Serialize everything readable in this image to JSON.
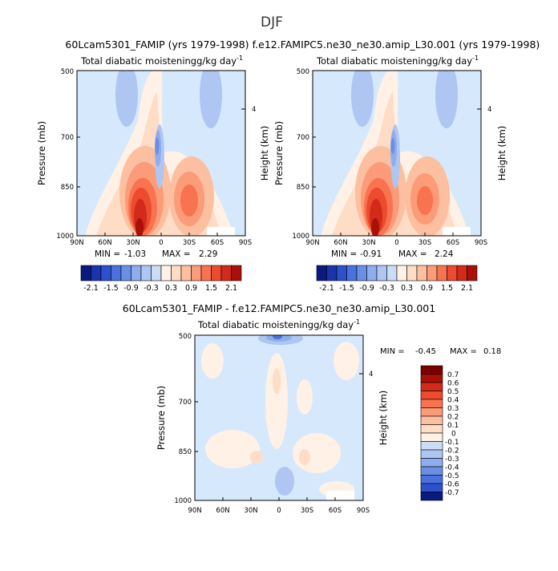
{
  "figure_title": "DJF",
  "colors": {
    "positive": [
      "#fff1e6",
      "#fedcc6",
      "#fcbfa0",
      "#fb9b77",
      "#f97350",
      "#ec4b2f",
      "#d32a1a",
      "#a81008",
      "#7a0000"
    ],
    "negative": [
      "#e0ecfb",
      "#cbdcf6",
      "#aec6f1",
      "#8dadec",
      "#6a90e6",
      "#4b71de",
      "#2e50cf",
      "#1b34ab",
      "#0a1a80"
    ],
    "background": "#d6e8fc"
  },
  "chart_data": [
    {
      "type": "heatmap",
      "name": "60Lcam5301_FAMIP (yrs 1979-1998)",
      "title": "Total diabatic moistening",
      "units": "g/kg day",
      "units_exponent": "-1",
      "x_ticks": [
        "90N",
        "60N",
        "30N",
        "0",
        "30S",
        "60S",
        "90S"
      ],
      "y_ticks": [
        "500",
        "700",
        "850",
        "1000"
      ],
      "ylabel": "Pressure  (mb)",
      "right_label": "Height  (km)",
      "right_tick": "4",
      "min_label": "MIN =",
      "min_value": "-1.03",
      "max_label": "MAX =",
      "max_value": "2.29",
      "colorbar_labels": [
        "-2.1",
        "-1.5",
        "-0.9",
        "-0.3",
        "0.3",
        "0.9",
        "1.5",
        "2.1"
      ],
      "colorbar_levels": [
        -2.1,
        -1.8,
        -1.5,
        -1.2,
        -0.9,
        -0.6,
        -0.3,
        0,
        0.3,
        0.6,
        0.9,
        1.2,
        1.5,
        1.8,
        2.1
      ],
      "features": [
        {
          "lat": -22,
          "p": 930,
          "value": 2.2
        },
        {
          "lat": 25,
          "p": 900,
          "value": 1.1
        },
        {
          "lat": -5,
          "p": 700,
          "value": -0.8
        },
        {
          "lat": 60,
          "p": 620,
          "value": -0.5
        },
        {
          "lat": -60,
          "p": 620,
          "value": -0.5
        }
      ]
    },
    {
      "type": "heatmap",
      "name": "f.e12.FAMIPC5.ne30_ne30.amip_L30.001 (yrs 1979-1998)",
      "title": "Total diabatic moistening",
      "units": "g/kg day",
      "units_exponent": "-1",
      "x_ticks": [
        "90N",
        "60N",
        "30N",
        "0",
        "30S",
        "60S",
        "90S"
      ],
      "y_ticks": [
        "500",
        "700",
        "850",
        "1000"
      ],
      "ylabel": "Pressure  (mb)",
      "right_label": "Height  (km)",
      "right_tick": "4",
      "min_label": "MIN =",
      "min_value": "-0.91",
      "max_label": "MAX =",
      "max_value": "2.24",
      "colorbar_labels": [
        "-2.1",
        "-1.5",
        "-0.9",
        "-0.3",
        "0.3",
        "0.9",
        "1.5",
        "2.1"
      ],
      "colorbar_levels": [
        -2.1,
        -1.8,
        -1.5,
        -1.2,
        -0.9,
        -0.6,
        -0.3,
        0,
        0.3,
        0.6,
        0.9,
        1.2,
        1.5,
        1.8,
        2.1
      ],
      "features": [
        {
          "lat": -22,
          "p": 930,
          "value": 2.1
        },
        {
          "lat": 25,
          "p": 900,
          "value": 1.0
        },
        {
          "lat": -5,
          "p": 700,
          "value": -0.75
        },
        {
          "lat": 60,
          "p": 620,
          "value": -0.5
        },
        {
          "lat": -60,
          "p": 620,
          "value": -0.5
        }
      ]
    },
    {
      "type": "heatmap",
      "name": "60Lcam5301_FAMIP - f.e12.FAMIPC5.ne30_ne30.amip_L30.001",
      "title": "Total diabatic moistening",
      "units": "g/kg day",
      "units_exponent": "-1",
      "x_ticks": [
        "90N",
        "60N",
        "30N",
        "0",
        "30S",
        "60S",
        "90S"
      ],
      "y_ticks": [
        "500",
        "700",
        "850",
        "1000"
      ],
      "ylabel": "Pressure  (mb)",
      "right_label": "Height  (km)",
      "right_tick": "4",
      "min_label": "MIN =",
      "min_value": "-0.45",
      "max_label": "MAX =",
      "max_value": "0.18",
      "colorbar_labels": [
        "0.7",
        "0.6",
        "0.5",
        "0.4",
        "0.3",
        "0.2",
        "0.1",
        "0",
        "-0.1",
        "-0.2",
        "-0.3",
        "-0.4",
        "-0.5",
        "-0.6",
        "-0.7"
      ],
      "colorbar_levels": [
        -0.7,
        -0.6,
        -0.5,
        -0.4,
        -0.3,
        -0.2,
        -0.1,
        0,
        0.1,
        0.2,
        0.3,
        0.4,
        0.5,
        0.6,
        0.7
      ],
      "features": [
        {
          "lat": 0,
          "p": 505,
          "value": -0.45
        },
        {
          "lat": 3,
          "p": 680,
          "value": 0.12
        },
        {
          "lat": 35,
          "p": 860,
          "value": 0.1
        },
        {
          "lat": -30,
          "p": 860,
          "value": 0.1
        },
        {
          "lat": -5,
          "p": 950,
          "value": -0.15
        }
      ]
    }
  ]
}
